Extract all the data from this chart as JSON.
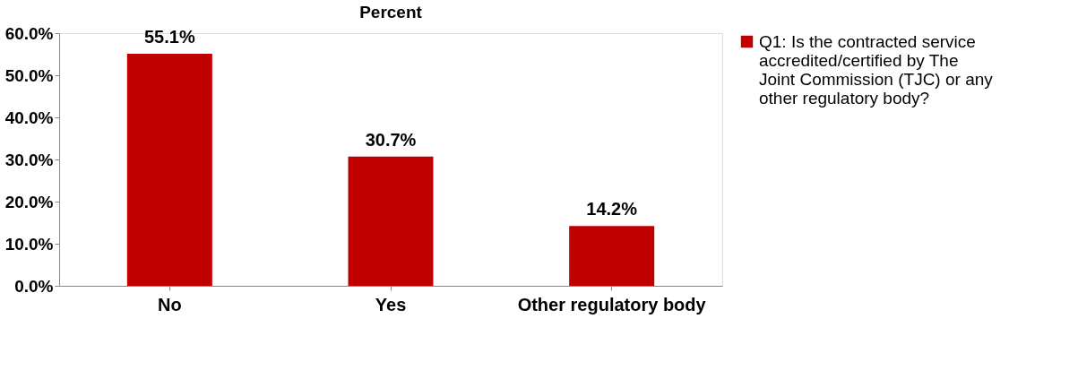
{
  "chart_data": {
    "type": "bar",
    "title": "Percent",
    "categories": [
      "No",
      "Yes",
      "Other regulatory body"
    ],
    "series": [
      {
        "name": "Q1: Is the contracted service accredited/certified by The Joint Commission (TJC) or any other regulatory body?",
        "color": "#c00000",
        "values": [
          55.1,
          30.7,
          14.2
        ]
      }
    ],
    "value_labels": [
      "55.1%",
      "30.7%",
      "14.2%"
    ],
    "ylim": [
      0,
      60
    ],
    "yticks": [
      {
        "value": 0,
        "label": "0.0%"
      },
      {
        "value": 10,
        "label": "10.0%"
      },
      {
        "value": 20,
        "label": "20.0%"
      },
      {
        "value": 30,
        "label": "30.0%"
      },
      {
        "value": 40,
        "label": "40.0%"
      },
      {
        "value": 50,
        "label": "50.0%"
      },
      {
        "value": 60,
        "label": "60.0%"
      }
    ],
    "grid": false,
    "legend": "right"
  }
}
